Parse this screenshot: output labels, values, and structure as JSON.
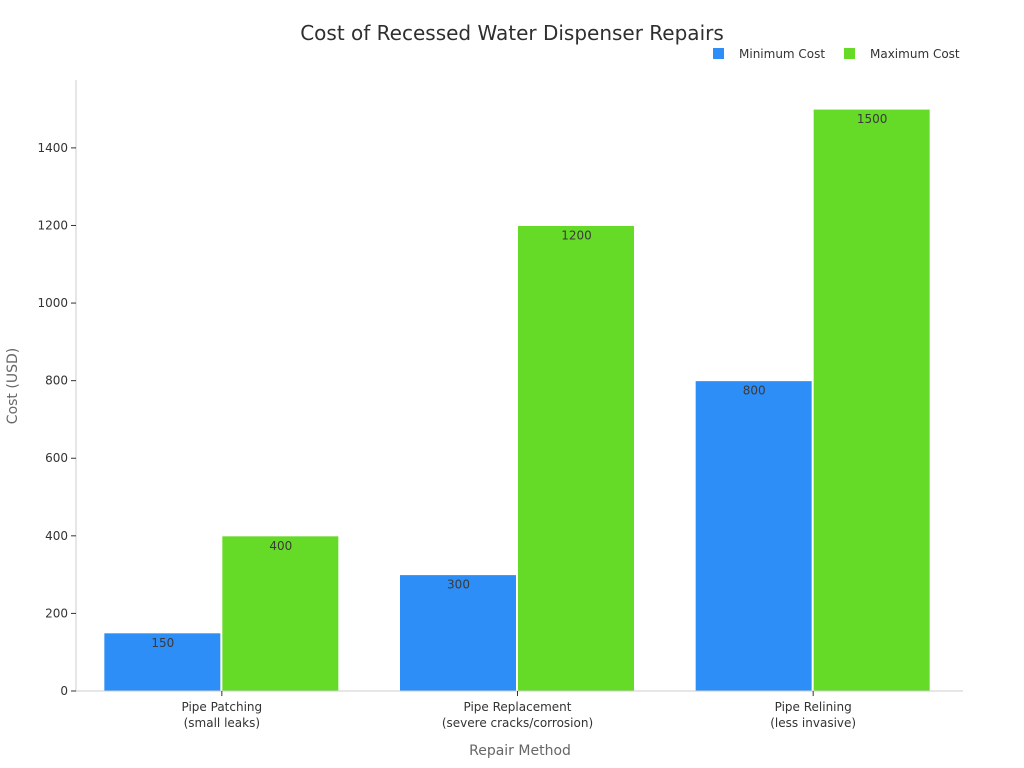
{
  "chart_data": {
    "type": "bar",
    "title": "Cost of Recessed Water Dispenser Repairs",
    "xlabel": "Repair Method",
    "ylabel": "Cost (USD)",
    "categories": [
      [
        "Pipe Patching",
        "(small leaks)"
      ],
      [
        "Pipe Replacement",
        "(severe cracks/corrosion)"
      ],
      [
        "Pipe Relining",
        "(less invasive)"
      ]
    ],
    "series": [
      {
        "name": "Minimum Cost",
        "values": [
          150,
          300,
          800
        ],
        "color": "#2d8ef7"
      },
      {
        "name": "Maximum Cost",
        "values": [
          400,
          1200,
          1500
        ],
        "color": "#66db27"
      }
    ],
    "ylim": [
      0,
      1575
    ],
    "yticks": [
      0,
      200,
      400,
      600,
      800,
      1000,
      1200,
      1400
    ],
    "grid": false,
    "legend_position": "top-right",
    "data_labels": true
  }
}
